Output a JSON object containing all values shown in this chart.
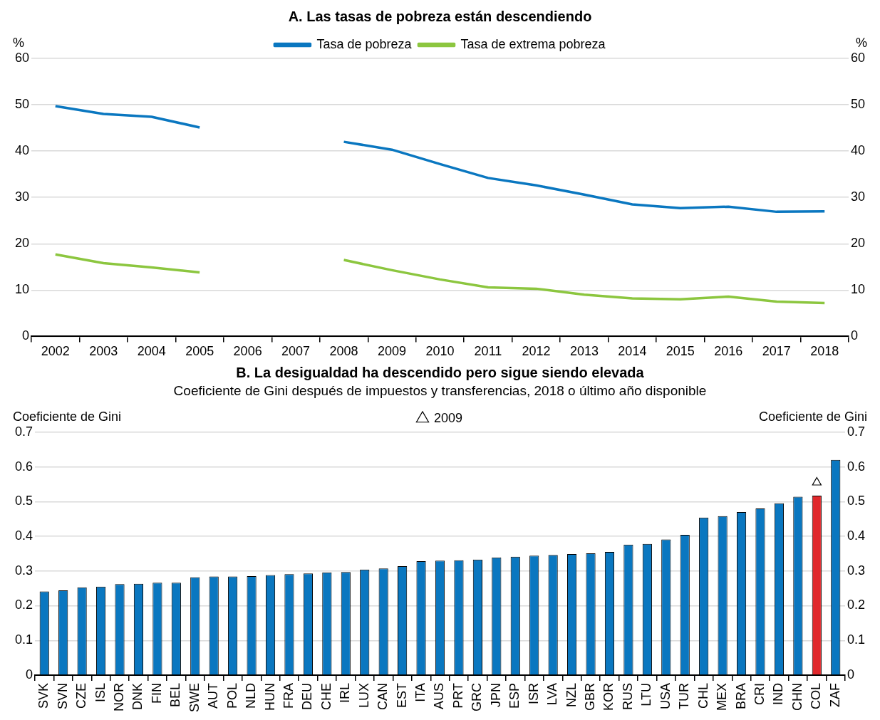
{
  "chart_data": [
    {
      "type": "line",
      "title": "A. Las tasas de pobreza están descendiendo",
      "ylabel": "%",
      "y2label": "%",
      "categories": [
        "2002",
        "2003",
        "2004",
        "2005",
        "2006",
        "2007",
        "2008",
        "2009",
        "2010",
        "2011",
        "2012",
        "2013",
        "2014",
        "2015",
        "2016",
        "2017",
        "2018"
      ],
      "series": [
        {
          "name": "Tasa de pobreza",
          "color": "#0a77c0",
          "values": [
            49.7,
            48.0,
            47.4,
            45.1,
            null,
            null,
            42.0,
            40.3,
            37.2,
            34.2,
            32.6,
            30.6,
            28.5,
            27.7,
            28.0,
            26.9,
            27.0
          ]
        },
        {
          "name": "Tasa de extrema pobreza",
          "color": "#8cc63f",
          "values": [
            17.7,
            15.8,
            14.9,
            13.8,
            null,
            null,
            16.5,
            14.3,
            12.3,
            10.6,
            10.3,
            9.0,
            8.2,
            8.0,
            8.6,
            7.5,
            7.2
          ]
        }
      ],
      "ylim": [
        0,
        60
      ],
      "yticks": [
        0,
        10,
        20,
        30,
        40,
        50,
        60
      ],
      "y2lim": [
        0,
        60
      ],
      "y2ticks": [
        0,
        10,
        20,
        30,
        40,
        50,
        60
      ],
      "grid": "y",
      "legend": "top",
      "marker": "none",
      "line_style": "solid"
    },
    {
      "type": "bar",
      "title": "B. La desigualdad ha descendido pero sigue siendo elevada",
      "subtitle": "Coeficiente de Gini después de impuestos y transferencias, 2018 o último año disponible",
      "ylabel": "Coeficiente de Gini",
      "y2label": "Coeficiente de Gini",
      "categories": [
        "SVK",
        "SVN",
        "CZE",
        "ISL",
        "NOR",
        "DNK",
        "FIN",
        "BEL",
        "SWE",
        "AUT",
        "POL",
        "NLD",
        "HUN",
        "FRA",
        "DEU",
        "CHE",
        "IRL",
        "LUX",
        "CAN",
        "EST",
        "ITA",
        "AUS",
        "PRT",
        "GRC",
        "JPN",
        "ESP",
        "ISR",
        "LVA",
        "NZL",
        "GBR",
        "KOR",
        "RUS",
        "LTU",
        "USA",
        "TUR",
        "CHL",
        "MEX",
        "BRA",
        "CRI",
        "IND",
        "CHN",
        "COL",
        "ZAF"
      ],
      "series": [
        {
          "type": "bar",
          "colors": [
            "#0a77c0",
            "#0a77c0",
            "#0a77c0",
            "#0a77c0",
            "#0a77c0",
            "#0a77c0",
            "#0a77c0",
            "#0a77c0",
            "#0a77c0",
            "#0a77c0",
            "#0a77c0",
            "#0a77c0",
            "#0a77c0",
            "#0a77c0",
            "#0a77c0",
            "#0a77c0",
            "#0a77c0",
            "#0a77c0",
            "#0a77c0",
            "#0a77c0",
            "#0a77c0",
            "#0a77c0",
            "#0a77c0",
            "#0a77c0",
            "#0a77c0",
            "#0a77c0",
            "#0a77c0",
            "#0a77c0",
            "#0a77c0",
            "#0a77c0",
            "#0a77c0",
            "#0a77c0",
            "#0a77c0",
            "#0a77c0",
            "#0a77c0",
            "#0a77c0",
            "#0a77c0",
            "#0a77c0",
            "#0a77c0",
            "#0a77c0",
            "#0a77c0",
            "#e0282c",
            "#0a77c0"
          ],
          "values": [
            0.241,
            0.244,
            0.253,
            0.255,
            0.262,
            0.263,
            0.266,
            0.266,
            0.282,
            0.284,
            0.284,
            0.285,
            0.288,
            0.291,
            0.293,
            0.296,
            0.297,
            0.304,
            0.307,
            0.314,
            0.328,
            0.33,
            0.331,
            0.333,
            0.339,
            0.341,
            0.344,
            0.346,
            0.349,
            0.351,
            0.355,
            0.376,
            0.378,
            0.391,
            0.404,
            0.454,
            0.458,
            0.47,
            0.48,
            0.495,
            0.514,
            0.517,
            0.62
          ]
        },
        {
          "type": "scatter",
          "name": "2009",
          "color": "#000000",
          "marker": "triangle",
          "x": [
            "COL"
          ],
          "values": [
            0.555
          ]
        }
      ],
      "ylim": [
        0,
        0.7
      ],
      "yticks": [
        0,
        0.1,
        0.2,
        0.3,
        0.4,
        0.5,
        0.6,
        0.7
      ],
      "y2lim": [
        0,
        0.7
      ],
      "y2ticks": [
        0,
        0.1,
        0.2,
        0.3,
        0.4,
        0.5,
        0.6,
        0.7
      ],
      "grid": "y",
      "legend": "top"
    }
  ]
}
